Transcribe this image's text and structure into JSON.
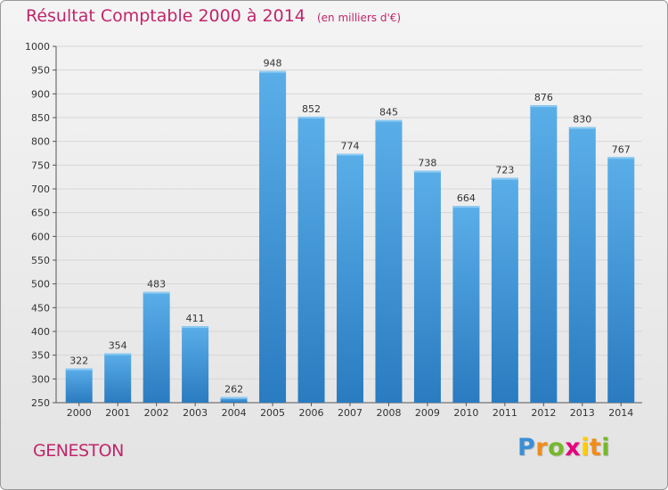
{
  "header": {
    "title": "Résultat Comptable 2000 à 2014",
    "unit": "(en milliers d'€)"
  },
  "footer": {
    "commune": "GENESTON",
    "brand": "Proxiti"
  },
  "colors": {
    "title": "#c0266b",
    "bar_top": "#5aaee8",
    "bar_bottom": "#2a7bc0",
    "grid": "#d6d6d6",
    "axis": "#555555"
  },
  "chart_data": {
    "type": "bar",
    "title": "Résultat Comptable 2000 à 2014",
    "xlabel": "",
    "ylabel": "",
    "categories": [
      "2000",
      "2001",
      "2002",
      "2003",
      "2004",
      "2005",
      "2006",
      "2007",
      "2008",
      "2009",
      "2010",
      "2011",
      "2012",
      "2013",
      "2014"
    ],
    "values": [
      322,
      354,
      483,
      411,
      262,
      948,
      852,
      774,
      845,
      738,
      664,
      723,
      876,
      830,
      767
    ],
    "ylim": [
      250,
      1000
    ],
    "yticks": [
      250,
      300,
      350,
      400,
      450,
      500,
      550,
      600,
      650,
      700,
      750,
      800,
      850,
      900,
      950,
      1000
    ],
    "grid": true,
    "data_labels": true
  }
}
